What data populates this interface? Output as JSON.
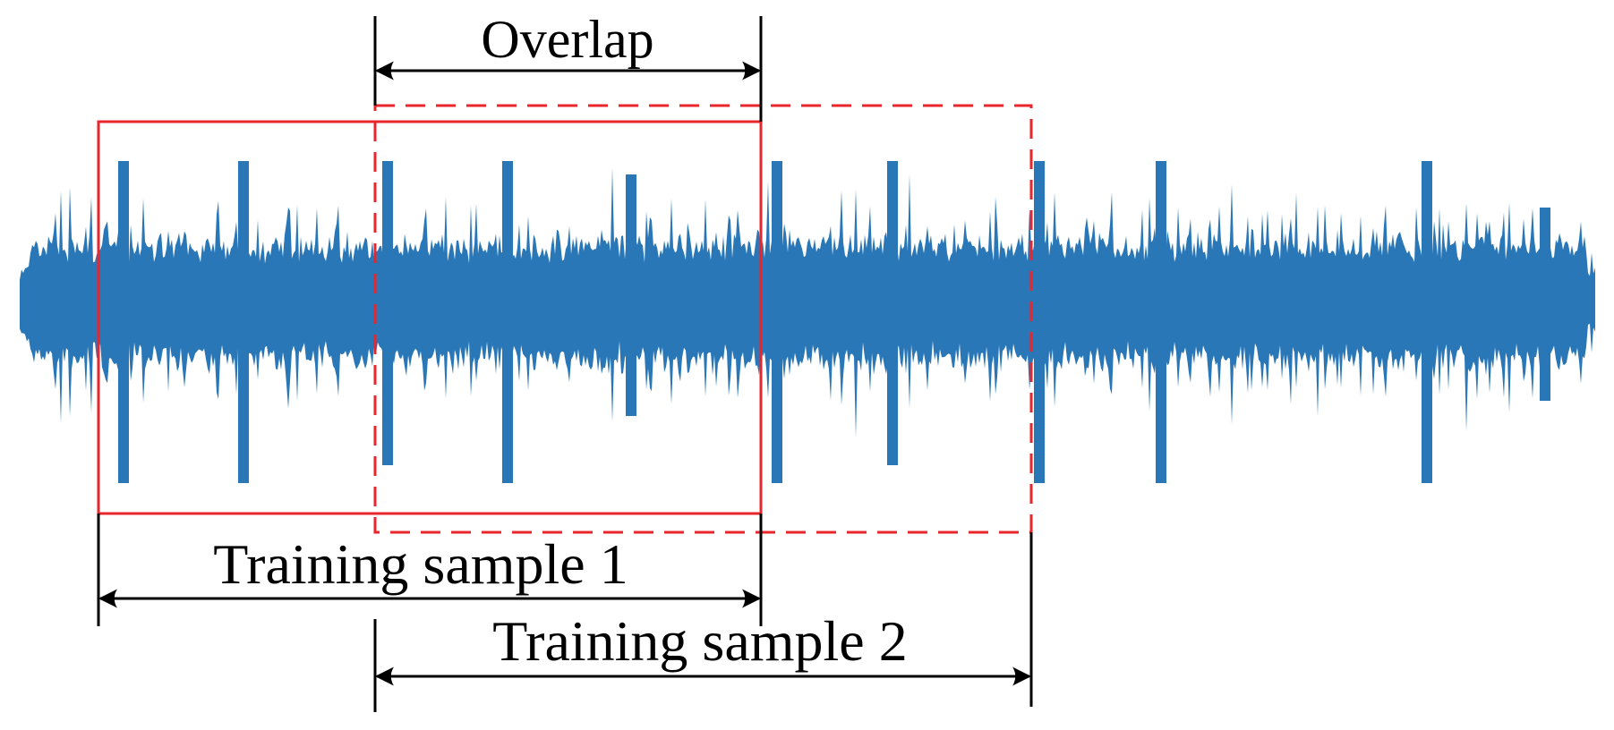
{
  "labels": {
    "overlap": "Overlap",
    "sample1": "Training sample 1",
    "sample2": "Training sample 2"
  },
  "colors": {
    "signal": "#2a77b8",
    "window": "#e8262c",
    "annotation": "#000000",
    "background": "#ffffff"
  }
}
